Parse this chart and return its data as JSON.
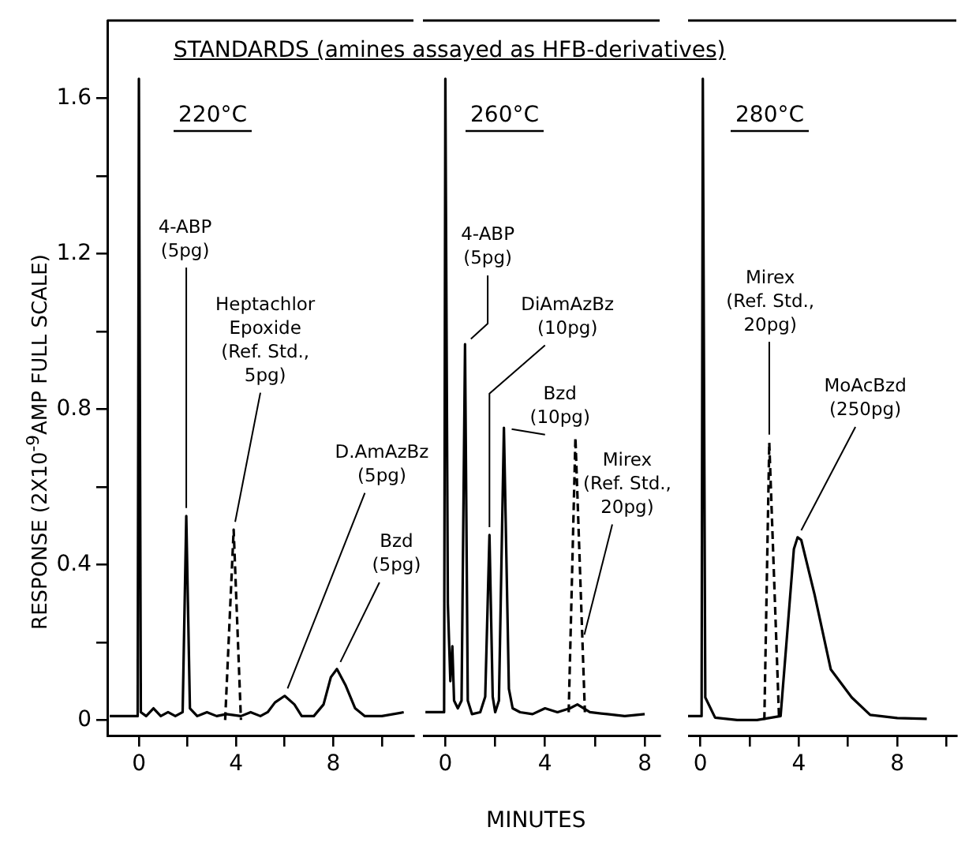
{
  "chart_data": [
    {
      "type": "line",
      "title": "STANDARDS (amines assayed as HFB-derivatives)",
      "subtitle": "220°C",
      "ylabel": "RESPONSE (2X10$^{-9}$AMP FULL SCALE)",
      "marker": "none",
      "xlim": [
        -1.3,
        11.3
      ],
      "xticks": [
        0,
        {
          "value": 2,
          "label": null
        },
        4,
        {
          "value": 6,
          "label": null
        },
        8,
        {
          "value": 10,
          "label": null
        }
      ],
      "ylim": [
        -0.04,
        1.8
      ],
      "yticks": [
        0,
        {
          "value": 0.2,
          "label": null
        },
        0.4,
        {
          "value": 0.6,
          "label": null
        },
        0.8,
        {
          "value": 1.0,
          "label": null
        },
        1.2,
        {
          "value": 1.4,
          "label": null
        },
        1.6
      ],
      "series": [
        {
          "color": "#000000",
          "line_style": "solid",
          "x": [
            -1.2,
            -0.05,
            0,
            0.08,
            0.3,
            0.6,
            0.9,
            1.2,
            1.5,
            1.8,
            1.95,
            2.1,
            2.4,
            2.8,
            3.2,
            3.6,
            4.2,
            4.6,
            5.0,
            5.3,
            5.6,
            6.0,
            6.4,
            6.7,
            7.2,
            7.6,
            7.9,
            8.15,
            8.5,
            8.9,
            9.3,
            10.0,
            10.9
          ],
          "values": [
            0.01,
            0.01,
            1.65,
            0.02,
            0.01,
            0.03,
            0.01,
            0.02,
            0.01,
            0.02,
            0.525,
            0.03,
            0.01,
            0.02,
            0.01,
            0.015,
            0.01,
            0.02,
            0.01,
            0.02,
            0.045,
            0.062,
            0.04,
            0.01,
            0.01,
            0.04,
            0.11,
            0.131,
            0.09,
            0.03,
            0.01,
            0.01,
            0.02
          ]
        },
        {
          "color": "#000000",
          "line_style": "dashed",
          "x": [
            3.55,
            3.9,
            4.2
          ],
          "values": [
            0,
            0.49,
            0
          ]
        }
      ],
      "annotations": [
        {
          "text": "4-ABP\n(5pg)",
          "x": 1.95,
          "y": 0.525
        },
        {
          "text": "Heptachlor\nEpoxide\n(Ref. Std.,\n5pg)",
          "x": 3.9,
          "y": 0.49
        },
        {
          "text": "D.AmAzBz\n(5pg)",
          "x": 6.0,
          "y": 0.062
        },
        {
          "text": "Bzd\n(5pg)",
          "x": 8.15,
          "y": 0.131
        }
      ]
    },
    {
      "type": "line",
      "subtitle": "260°C",
      "xlabel": "MINUTES",
      "marker": "none",
      "tick_labels": "x",
      "xlim": [
        -0.9,
        8.6
      ],
      "xticks": [
        0,
        {
          "value": 2,
          "label": null
        },
        4,
        {
          "value": 6,
          "label": null
        },
        8
      ],
      "ylim": [
        -0.04,
        1.8
      ],
      "series": [
        {
          "color": "#000000",
          "line_style": "solid",
          "x": [
            -0.8,
            -0.05,
            0,
            0.1,
            0.2,
            0.28,
            0.35,
            0.5,
            0.65,
            0.79,
            0.9,
            1.07,
            1.4,
            1.6,
            1.77,
            1.9,
            2.0,
            2.15,
            2.35,
            2.55,
            2.7,
            3.0,
            3.5,
            4.0,
            4.5,
            5.0,
            5.3,
            5.8,
            6.5,
            7.2,
            8.0
          ],
          "values": [
            0.02,
            0.02,
            1.65,
            0.3,
            0.1,
            0.19,
            0.05,
            0.03,
            0.05,
            0.967,
            0.05,
            0.015,
            0.02,
            0.06,
            0.476,
            0.06,
            0.02,
            0.05,
            0.752,
            0.08,
            0.03,
            0.02,
            0.015,
            0.03,
            0.02,
            0.03,
            0.04,
            0.02,
            0.015,
            0.01,
            0.015
          ]
        },
        {
          "color": "#000000",
          "line_style": "dashed",
          "x": [
            4.95,
            5.22,
            5.6
          ],
          "values": [
            0.02,
            0.727,
            0.02
          ]
        }
      ],
      "annotations": [
        {
          "text": "4-ABP\n(5pg)",
          "x": 0.79,
          "y": 0.967
        },
        {
          "text": "DiAmAzBz\n(10pg)",
          "x": 1.77,
          "y": 0.476
        },
        {
          "text": "Bzd\n(10pg)",
          "x": 2.35,
          "y": 0.752
        },
        {
          "text": "Mirex\n(Ref. Std.,\n20pg)",
          "x": 5.5,
          "y": 0.2
        }
      ]
    },
    {
      "type": "line",
      "subtitle": "280°C",
      "marker": "none",
      "tick_labels": "x",
      "xlim": [
        -0.5,
        10.4
      ],
      "xticks": [
        0,
        {
          "value": 2,
          "label": null
        },
        4,
        {
          "value": 6,
          "label": null
        },
        8,
        {
          "value": 10,
          "label": null
        }
      ],
      "ylim": [
        -0.04,
        1.8
      ],
      "series": [
        {
          "color": "#000000",
          "line_style": "solid",
          "x": [
            -0.5,
            0.05,
            0.1,
            0.2,
            0.6,
            1.5,
            2.3,
            3.26,
            3.5,
            3.8,
            3.95,
            4.1,
            4.65,
            5.3,
            6.15,
            6.9,
            8.0,
            9.2
          ],
          "values": [
            0.01,
            0.01,
            1.65,
            0.058,
            0.006,
            0,
            0,
            0.01,
            0.2,
            0.44,
            0.47,
            0.463,
            0.32,
            0.13,
            0.058,
            0.013,
            0.005,
            0.003
          ]
        },
        {
          "color": "#000000",
          "line_style": "dashed",
          "x": [
            2.6,
            2.8,
            3.2
          ],
          "values": [
            0,
            0.714,
            0
          ]
        }
      ],
      "annotations": [
        {
          "text": "Mirex\n(Ref. Std.,\n20pg)",
          "x": 2.8,
          "y": 0.714
        },
        {
          "text": "MoAcBzd\n(250pg)",
          "x": 3.95,
          "y": 0.47
        }
      ]
    }
  ]
}
